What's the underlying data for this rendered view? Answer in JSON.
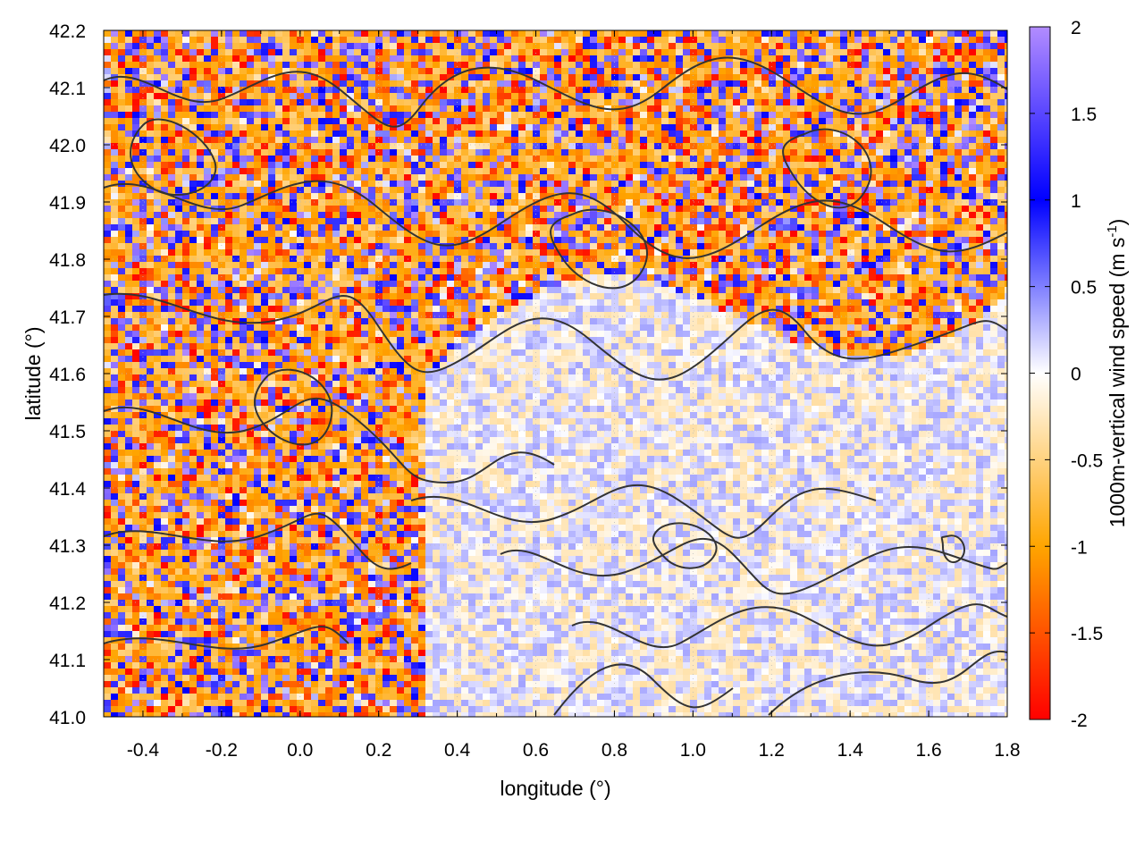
{
  "chart_data": {
    "type": "heatmap",
    "title": "",
    "xlabel": "longitude (°)",
    "ylabel": "latitude (°)",
    "colorbar_label": "1000m-vertical wind speed (m s-1)",
    "xlim": [
      -0.5,
      1.8
    ],
    "ylim": [
      41.0,
      42.2
    ],
    "clim": [
      -2,
      2
    ],
    "x_ticks": [
      "-0.4",
      "-0.2",
      "0.0",
      "0.2",
      "0.4",
      "0.6",
      "0.8",
      "1.0",
      "1.2",
      "1.4",
      "1.6",
      "1.8"
    ],
    "x_tick_values": [
      -0.4,
      -0.2,
      0.0,
      0.2,
      0.4,
      0.6,
      0.8,
      1.0,
      1.2,
      1.4,
      1.6,
      1.8
    ],
    "y_ticks": [
      "41.0",
      "41.1",
      "41.2",
      "41.3",
      "41.4",
      "41.5",
      "41.6",
      "41.7",
      "41.8",
      "41.9",
      "42.0",
      "42.1",
      "42.2"
    ],
    "y_tick_values": [
      41.0,
      41.1,
      41.2,
      41.3,
      41.4,
      41.5,
      41.6,
      41.7,
      41.8,
      41.9,
      42.0,
      42.1,
      42.2
    ],
    "colorbar_ticks": [
      "2",
      "1.5",
      "1",
      "0.5",
      "0",
      "-0.5",
      "-1",
      "-1.5",
      "-2"
    ],
    "colorbar_tick_values": [
      2,
      1.5,
      1,
      0.5,
      0,
      -0.5,
      -1,
      -1.5,
      -2
    ],
    "colormap": [
      {
        "value": -2,
        "color": "#ff0000"
      },
      {
        "value": -1,
        "color": "#ffa500"
      },
      {
        "value": 0,
        "color": "#ffffff"
      },
      {
        "value": 1,
        "color": "#0000ff"
      },
      {
        "value": 2,
        "color": "#b28cff"
      }
    ],
    "contour_color": "#333333",
    "grid": true,
    "notes_visible": "Noisy vertical wind field; strong +/- variability over land (north/west), calm near-zero values over sea (south-east), overlaid with black terrain contour lines."
  }
}
